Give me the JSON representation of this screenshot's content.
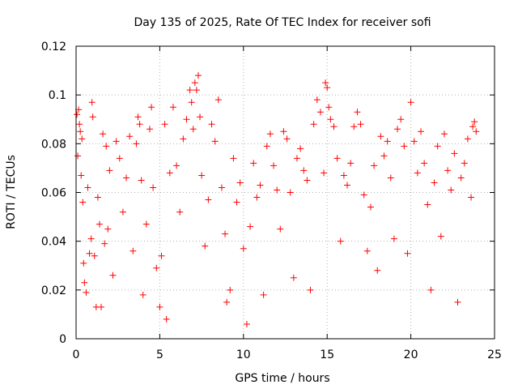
{
  "chart_data": {
    "type": "scatter",
    "title": "Day 135 of 2025, Rate Of TEC Index for receiver sofi",
    "xlabel": "GPS time / hours",
    "ylabel": "ROTI / TECUs",
    "xlim": [
      0,
      25
    ],
    "ylim": [
      0,
      0.12
    ],
    "xticks": [
      0,
      5,
      10,
      15,
      20,
      25
    ],
    "yticks": [
      0,
      0.02,
      0.04,
      0.06,
      0.08,
      0.1,
      0.12
    ],
    "xtick_labels": [
      "0",
      "5",
      "10",
      "15",
      "20",
      "25"
    ],
    "ytick_labels": [
      "0",
      "0.02",
      "0.04",
      "0.06",
      "0.08",
      "0.1",
      "0.12"
    ],
    "grid": true,
    "marker": "+",
    "color": "#ff0000",
    "series": [
      {
        "points": [
          [
            0.05,
            0.092
          ],
          [
            0.1,
            0.075
          ],
          [
            0.15,
            0.094
          ],
          [
            0.2,
            0.088
          ],
          [
            0.25,
            0.085
          ],
          [
            0.3,
            0.067
          ],
          [
            0.35,
            0.082
          ],
          [
            0.4,
            0.056
          ],
          [
            0.45,
            0.031
          ],
          [
            0.5,
            0.023
          ],
          [
            0.6,
            0.019
          ],
          [
            0.7,
            0.062
          ],
          [
            0.8,
            0.035
          ],
          [
            0.9,
            0.041
          ],
          [
            0.95,
            0.097
          ],
          [
            1.0,
            0.091
          ],
          [
            1.1,
            0.034
          ],
          [
            1.2,
            0.013
          ],
          [
            1.3,
            0.058
          ],
          [
            1.4,
            0.047
          ],
          [
            1.5,
            0.013
          ],
          [
            1.6,
            0.084
          ],
          [
            1.7,
            0.039
          ],
          [
            1.8,
            0.079
          ],
          [
            1.9,
            0.045
          ],
          [
            2.0,
            0.069
          ],
          [
            2.2,
            0.026
          ],
          [
            2.4,
            0.081
          ],
          [
            2.6,
            0.074
          ],
          [
            2.8,
            0.052
          ],
          [
            3.0,
            0.066
          ],
          [
            3.2,
            0.083
          ],
          [
            3.4,
            0.036
          ],
          [
            3.6,
            0.08
          ],
          [
            3.7,
            0.091
          ],
          [
            3.8,
            0.088
          ],
          [
            3.9,
            0.065
          ],
          [
            4.0,
            0.018
          ],
          [
            4.2,
            0.047
          ],
          [
            4.4,
            0.086
          ],
          [
            4.5,
            0.095
          ],
          [
            4.6,
            0.062
          ],
          [
            4.8,
            0.029
          ],
          [
            5.0,
            0.013
          ],
          [
            5.1,
            0.034
          ],
          [
            5.3,
            0.088
          ],
          [
            5.4,
            0.008
          ],
          [
            5.6,
            0.068
          ],
          [
            5.8,
            0.095
          ],
          [
            6.0,
            0.071
          ],
          [
            6.2,
            0.052
          ],
          [
            6.4,
            0.082
          ],
          [
            6.6,
            0.09
          ],
          [
            6.8,
            0.102
          ],
          [
            6.9,
            0.097
          ],
          [
            7.0,
            0.086
          ],
          [
            7.1,
            0.105
          ],
          [
            7.2,
            0.102
          ],
          [
            7.3,
            0.108
          ],
          [
            7.4,
            0.091
          ],
          [
            7.5,
            0.067
          ],
          [
            7.7,
            0.038
          ],
          [
            7.9,
            0.057
          ],
          [
            8.1,
            0.088
          ],
          [
            8.3,
            0.081
          ],
          [
            8.5,
            0.098
          ],
          [
            8.7,
            0.062
          ],
          [
            8.9,
            0.043
          ],
          [
            9.0,
            0.015
          ],
          [
            9.2,
            0.02
          ],
          [
            9.4,
            0.074
          ],
          [
            9.6,
            0.056
          ],
          [
            9.8,
            0.064
          ],
          [
            10.0,
            0.037
          ],
          [
            10.2,
            0.006
          ],
          [
            10.4,
            0.046
          ],
          [
            10.6,
            0.072
          ],
          [
            10.8,
            0.058
          ],
          [
            11.0,
            0.063
          ],
          [
            11.2,
            0.018
          ],
          [
            11.4,
            0.079
          ],
          [
            11.6,
            0.084
          ],
          [
            11.8,
            0.071
          ],
          [
            12.0,
            0.061
          ],
          [
            12.2,
            0.045
          ],
          [
            12.4,
            0.085
          ],
          [
            12.6,
            0.082
          ],
          [
            12.8,
            0.06
          ],
          [
            13.0,
            0.025
          ],
          [
            13.2,
            0.074
          ],
          [
            13.4,
            0.078
          ],
          [
            13.6,
            0.069
          ],
          [
            13.8,
            0.065
          ],
          [
            14.0,
            0.02
          ],
          [
            14.2,
            0.088
          ],
          [
            14.4,
            0.098
          ],
          [
            14.6,
            0.093
          ],
          [
            14.8,
            0.068
          ],
          [
            14.9,
            0.105
          ],
          [
            15.0,
            0.103
          ],
          [
            15.1,
            0.095
          ],
          [
            15.2,
            0.09
          ],
          [
            15.4,
            0.087
          ],
          [
            15.6,
            0.074
          ],
          [
            15.8,
            0.04
          ],
          [
            16.0,
            0.067
          ],
          [
            16.2,
            0.063
          ],
          [
            16.4,
            0.072
          ],
          [
            16.6,
            0.087
          ],
          [
            16.8,
            0.093
          ],
          [
            17.0,
            0.088
          ],
          [
            17.2,
            0.059
          ],
          [
            17.4,
            0.036
          ],
          [
            17.6,
            0.054
          ],
          [
            17.8,
            0.071
          ],
          [
            18.0,
            0.028
          ],
          [
            18.2,
            0.083
          ],
          [
            18.4,
            0.075
          ],
          [
            18.6,
            0.081
          ],
          [
            18.8,
            0.066
          ],
          [
            19.0,
            0.041
          ],
          [
            19.2,
            0.086
          ],
          [
            19.4,
            0.09
          ],
          [
            19.6,
            0.079
          ],
          [
            19.8,
            0.035
          ],
          [
            20.0,
            0.097
          ],
          [
            20.2,
            0.081
          ],
          [
            20.4,
            0.068
          ],
          [
            20.6,
            0.085
          ],
          [
            20.8,
            0.072
          ],
          [
            21.0,
            0.055
          ],
          [
            21.2,
            0.02
          ],
          [
            21.4,
            0.064
          ],
          [
            21.6,
            0.079
          ],
          [
            21.8,
            0.042
          ],
          [
            22.0,
            0.084
          ],
          [
            22.2,
            0.069
          ],
          [
            22.4,
            0.061
          ],
          [
            22.6,
            0.076
          ],
          [
            22.8,
            0.015
          ],
          [
            23.0,
            0.066
          ],
          [
            23.2,
            0.072
          ],
          [
            23.4,
            0.082
          ],
          [
            23.6,
            0.058
          ],
          [
            23.7,
            0.087
          ],
          [
            23.8,
            0.089
          ],
          [
            23.9,
            0.085
          ]
        ]
      }
    ]
  }
}
